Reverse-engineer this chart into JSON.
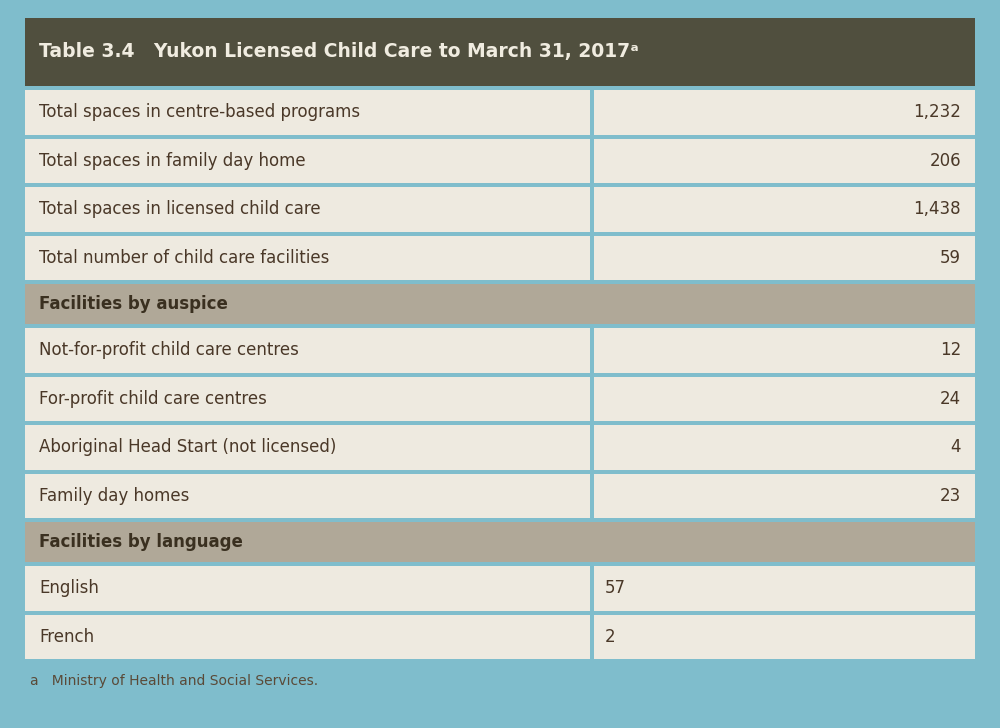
{
  "title": "Table 3.4   Yukon Licensed Child Care to March 31, 2017ᵃ",
  "header_bg": "#504f3e",
  "header_text_color": "#f0ece0",
  "outer_bg": "#7fbdcc",
  "section_header_bg": "#b0a898",
  "section_header_text_color": "#3a3020",
  "row_bg": "#eeeae0",
  "cell_text_color": "#4a3828",
  "border_color": "#7fbdcc",
  "footnote": "a   Ministry of Health and Social Services.",
  "footnote_color": "#5a4a38",
  "col_split": 0.595,
  "rows": [
    {
      "label": "Total spaces in centre-based programs",
      "value": "1,232",
      "type": "data",
      "right_align": true
    },
    {
      "label": "Total spaces in family day home",
      "value": "206",
      "type": "data",
      "right_align": true
    },
    {
      "label": "Total spaces in licensed child care",
      "value": "1,438",
      "type": "data",
      "right_align": true
    },
    {
      "label": "Total number of child care facilities",
      "value": "59",
      "type": "data",
      "right_align": true
    },
    {
      "label": "Facilities by auspice",
      "value": "",
      "type": "section_header",
      "right_align": false
    },
    {
      "label": "Not-for-profit child care centres",
      "value": "12",
      "type": "data",
      "right_align": true
    },
    {
      "label": "For-profit child care centres",
      "value": "24",
      "type": "data",
      "right_align": true
    },
    {
      "label": "Aboriginal Head Start (not licensed)",
      "value": "4",
      "type": "data",
      "right_align": true
    },
    {
      "label": "Family day homes",
      "value": "23",
      "type": "data",
      "right_align": true
    },
    {
      "label": "Facilities by language",
      "value": "",
      "type": "section_header",
      "right_align": false
    },
    {
      "label": "English",
      "value": "57",
      "type": "data",
      "right_align": false
    },
    {
      "label": "French",
      "value": "2",
      "type": "data",
      "right_align": false
    }
  ]
}
